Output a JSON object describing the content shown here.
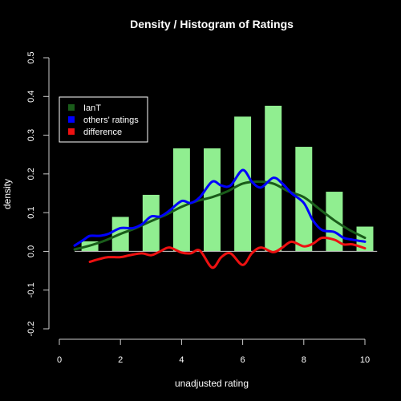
{
  "chart_data": {
    "type": "bar",
    "title": "Density / Histogram of Ratings",
    "xlabel": "unadjusted rating",
    "ylabel": "density",
    "xlim": [
      0,
      10
    ],
    "ylim": [
      -0.2,
      0.5
    ],
    "x_ticks": [
      0,
      2,
      4,
      6,
      8,
      10
    ],
    "y_ticks": [
      -0.2,
      -0.1,
      0.0,
      0.1,
      0.2,
      0.3,
      0.4,
      0.5
    ],
    "x_tick_labels": [
      "0",
      "2",
      "4",
      "6",
      "8",
      "10"
    ],
    "y_tick_labels": [
      "-0.2",
      "-0.1",
      "0.0",
      "0.1",
      "0.2",
      "0.3",
      "0.4",
      "0.5"
    ],
    "legend_position": "upper-left",
    "bars": {
      "color": "#90ee90",
      "centers": [
        1,
        2,
        3,
        4,
        5,
        6,
        7,
        8,
        9,
        10
      ],
      "values": [
        0.026,
        0.089,
        0.146,
        0.266,
        0.266,
        0.348,
        0.376,
        0.27,
        0.154,
        0.064
      ]
    },
    "series": [
      {
        "name": "IanT",
        "color": "#1a5c1a",
        "x": [
          0.5,
          1.0,
          1.5,
          2.0,
          2.5,
          3.0,
          3.5,
          4.0,
          4.5,
          5.0,
          5.5,
          6.0,
          6.5,
          7.0,
          7.5,
          8.0,
          8.5,
          9.0,
          9.5,
          10.0
        ],
        "y": [
          0.005,
          0.015,
          0.028,
          0.045,
          0.06,
          0.078,
          0.095,
          0.115,
          0.13,
          0.14,
          0.155,
          0.175,
          0.18,
          0.175,
          0.155,
          0.14,
          0.11,
          0.08,
          0.055,
          0.035
        ]
      },
      {
        "name": "others' ratings",
        "color": "#0000ff",
        "x": [
          0.5,
          0.8,
          1.0,
          1.3,
          1.6,
          2.0,
          2.4,
          2.7,
          3.0,
          3.3,
          3.6,
          4.0,
          4.3,
          4.6,
          5.0,
          5.3,
          5.6,
          6.0,
          6.3,
          6.6,
          7.0,
          7.3,
          7.6,
          8.0,
          8.3,
          8.6,
          9.0,
          9.3,
          9.6,
          10.0
        ],
        "y": [
          0.015,
          0.03,
          0.04,
          0.04,
          0.045,
          0.06,
          0.06,
          0.07,
          0.09,
          0.09,
          0.105,
          0.13,
          0.125,
          0.14,
          0.18,
          0.17,
          0.17,
          0.21,
          0.18,
          0.165,
          0.19,
          0.175,
          0.15,
          0.125,
          0.08,
          0.055,
          0.05,
          0.035,
          0.03,
          0.025
        ]
      },
      {
        "name": "difference",
        "color": "#ee1111",
        "x": [
          1.0,
          1.3,
          1.6,
          2.0,
          2.3,
          2.7,
          3.0,
          3.3,
          3.6,
          4.0,
          4.3,
          4.6,
          5.0,
          5.3,
          5.6,
          6.0,
          6.3,
          6.6,
          7.0,
          7.3,
          7.6,
          8.0,
          8.3,
          8.6,
          9.0,
          9.3,
          9.6,
          10.0
        ],
        "y": [
          -0.027,
          -0.02,
          -0.015,
          -0.015,
          -0.01,
          -0.005,
          -0.01,
          0.0,
          0.01,
          -0.003,
          -0.005,
          0.002,
          -0.042,
          -0.015,
          -0.005,
          -0.035,
          -0.005,
          0.01,
          -0.002,
          0.01,
          0.025,
          0.013,
          0.02,
          0.035,
          0.03,
          0.018,
          0.018,
          0.008
        ]
      }
    ]
  }
}
